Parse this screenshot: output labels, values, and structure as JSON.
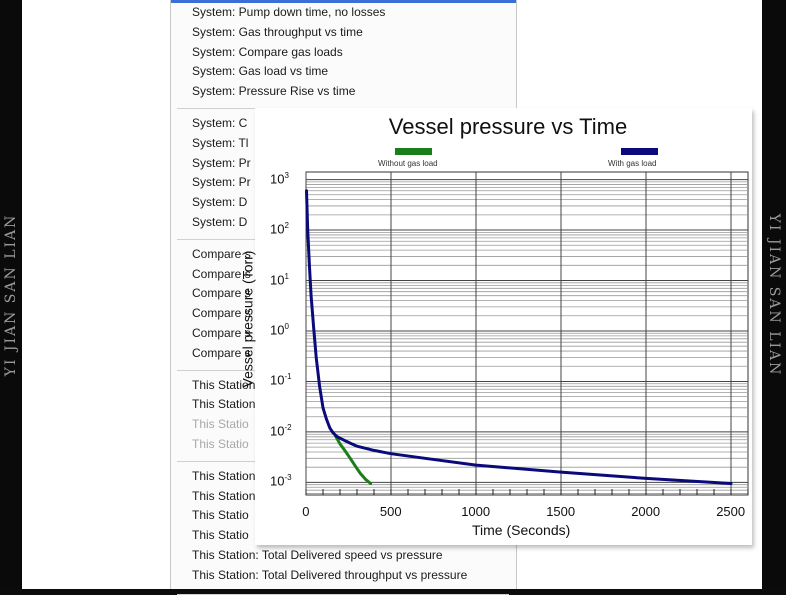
{
  "watermark": {
    "left": "YI JIAN SAN LIAN",
    "right": "YI JIAN SAN LIAN"
  },
  "menu": {
    "groups": [
      {
        "items": [
          {
            "label": "System: Pump down time, no losses",
            "enabled": true
          },
          {
            "label": "System: Gas throughput vs time",
            "enabled": true
          },
          {
            "label": "System: Compare gas loads",
            "enabled": true
          },
          {
            "label": "System: Gas load vs time",
            "enabled": true
          },
          {
            "label": "System: Pressure Rise vs time",
            "enabled": true
          }
        ]
      },
      {
        "items": [
          {
            "label": "System: C",
            "enabled": true
          },
          {
            "label": "System: Tl",
            "enabled": true
          },
          {
            "label": "System: Pr",
            "enabled": true
          },
          {
            "label": "System: Pr",
            "enabled": true
          },
          {
            "label": "System: D",
            "enabled": true
          },
          {
            "label": "System: D",
            "enabled": true
          }
        ]
      },
      {
        "items": [
          {
            "label": "Compare s",
            "enabled": true
          },
          {
            "label": "Compare s",
            "enabled": true
          },
          {
            "label": "Compare s",
            "enabled": true
          },
          {
            "label": "Compare s",
            "enabled": true
          },
          {
            "label": "Compare s",
            "enabled": true
          },
          {
            "label": "Compare s",
            "enabled": true
          }
        ]
      },
      {
        "items": [
          {
            "label": "This Station",
            "enabled": true
          },
          {
            "label": "This Station",
            "enabled": true
          },
          {
            "label": "This Statio",
            "enabled": false
          },
          {
            "label": "This Statio",
            "enabled": false
          }
        ]
      },
      {
        "items": [
          {
            "label": "This Station",
            "enabled": true
          },
          {
            "label": "This Station",
            "enabled": true
          },
          {
            "label": "This Statio",
            "enabled": true
          },
          {
            "label": "This Statio",
            "enabled": true
          },
          {
            "label": "This Station: Total Delivered speed vs pressure",
            "enabled": true
          },
          {
            "label": "This Station: Total Delivered throughput vs pressure",
            "enabled": true
          }
        ]
      }
    ]
  },
  "chart_data": {
    "type": "line",
    "title": "Vessel pressure vs Time",
    "xlabel": "Time  (Seconds)",
    "ylabel": "Vessel pressure  (Torr)",
    "xlim": [
      0,
      2600
    ],
    "ylim_log10": [
      -3.25,
      3.15
    ],
    "yscale": "log",
    "x_ticks": [
      0,
      500,
      1000,
      1500,
      2000,
      2500
    ],
    "y_ticks": [
      {
        "exp": 3,
        "base": "10",
        "sup": "3"
      },
      {
        "exp": 2,
        "base": "10",
        "sup": "2"
      },
      {
        "exp": 1,
        "base": "10",
        "sup": "1"
      },
      {
        "exp": 0,
        "base": "10",
        "sup": "0"
      },
      {
        "exp": -1,
        "base": "10",
        "sup": "-1"
      },
      {
        "exp": -2,
        "base": "10",
        "sup": "-2"
      },
      {
        "exp": -3,
        "base": "10",
        "sup": "-3"
      }
    ],
    "grid": true,
    "legend_position": "top",
    "series": [
      {
        "name": "Without gas load",
        "color": "#1a7f1a",
        "x": [
          175,
          200,
          230,
          260,
          290,
          320,
          350,
          380
        ],
        "y": [
          0.0081,
          0.0058,
          0.0042,
          0.003,
          0.0021,
          0.0015,
          0.00115,
          0.00095
        ]
      },
      {
        "name": "With gas load",
        "color": "#0a0a7a",
        "x": [
          3,
          10,
          20,
          30,
          45,
          60,
          80,
          100,
          120,
          140,
          160,
          180,
          200,
          250,
          300,
          400,
          500,
          700,
          1000,
          1500,
          2000,
          2500
        ],
        "y": [
          600,
          100,
          20,
          5,
          1.2,
          0.3,
          0.08,
          0.03,
          0.018,
          0.012,
          0.0095,
          0.0082,
          0.0075,
          0.0062,
          0.0052,
          0.0043,
          0.0037,
          0.003,
          0.0022,
          0.0016,
          0.0012,
          0.00095
        ]
      }
    ]
  }
}
